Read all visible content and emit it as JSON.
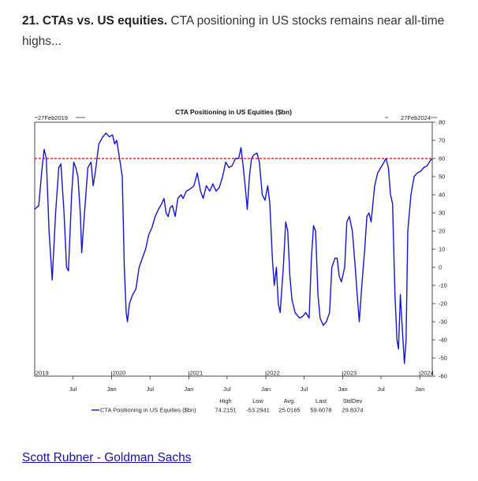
{
  "intro": {
    "bold": "21. CTAs vs. US equities.",
    "text": " CTA positioning in US stocks remains near all-time highs..."
  },
  "chart_data": {
    "type": "line",
    "title": "CTA Positioning in US Equities ($bn)",
    "date_start_label": "27Feb2019",
    "date_end_label": "27Feb2024",
    "ylim": [
      -60,
      80
    ],
    "yticks": [
      80,
      70,
      60,
      50,
      40,
      30,
      20,
      10,
      0,
      -10,
      -20,
      -30,
      -40,
      -50,
      -60
    ],
    "xlim": [
      "2019-01-01",
      "2024-02-29"
    ],
    "x_ticks_minor": [
      {
        "label": "Jul",
        "date": "2019-07-01"
      },
      {
        "label": "Jan",
        "date": "2020-01-01"
      },
      {
        "label": "Jul",
        "date": "2020-07-01"
      },
      {
        "label": "Jan",
        "date": "2021-01-01"
      },
      {
        "label": "Jul",
        "date": "2021-07-01"
      },
      {
        "label": "Jan",
        "date": "2022-01-01"
      },
      {
        "label": "Jul",
        "date": "2022-07-01"
      },
      {
        "label": "Jan",
        "date": "2023-01-01"
      },
      {
        "label": "Jul",
        "date": "2023-07-01"
      },
      {
        "label": "Jan",
        "date": "2024-01-01"
      }
    ],
    "x_ticks_years": [
      {
        "label": "2019",
        "date": "2019-01-01"
      },
      {
        "label": "2020",
        "date": "2020-01-01"
      },
      {
        "label": "2021",
        "date": "2021-01-01"
      },
      {
        "label": "2022",
        "date": "2022-01-01"
      },
      {
        "label": "2023",
        "date": "2023-01-01"
      },
      {
        "label": "2024",
        "date": "2024-01-01"
      }
    ],
    "reference_line": {
      "y": 60,
      "color": "#e00000",
      "style": "dashed"
    },
    "series": [
      {
        "name": "CTA Positioning in US Equities ($bn)",
        "color": "#1515d0",
        "points": [
          [
            "2019-01-01",
            32
          ],
          [
            "2019-01-20",
            34
          ],
          [
            "2019-02-05",
            55
          ],
          [
            "2019-02-15",
            65
          ],
          [
            "2019-02-25",
            60
          ],
          [
            "2019-03-10",
            20
          ],
          [
            "2019-03-25",
            -7
          ],
          [
            "2019-04-10",
            30
          ],
          [
            "2019-04-25",
            55
          ],
          [
            "2019-05-05",
            57
          ],
          [
            "2019-05-20",
            30
          ],
          [
            "2019-06-01",
            0
          ],
          [
            "2019-06-10",
            -2
          ],
          [
            "2019-06-25",
            40
          ],
          [
            "2019-07-05",
            58
          ],
          [
            "2019-07-15",
            55
          ],
          [
            "2019-07-25",
            50
          ],
          [
            "2019-08-05",
            30
          ],
          [
            "2019-08-12",
            8
          ],
          [
            "2019-08-25",
            30
          ],
          [
            "2019-09-10",
            55
          ],
          [
            "2019-09-25",
            58
          ],
          [
            "2019-10-05",
            45
          ],
          [
            "2019-10-15",
            52
          ],
          [
            "2019-11-01",
            68
          ],
          [
            "2019-11-20",
            72
          ],
          [
            "2019-12-05",
            74
          ],
          [
            "2019-12-20",
            72
          ],
          [
            "2020-01-05",
            73
          ],
          [
            "2020-01-15",
            68
          ],
          [
            "2020-01-25",
            70
          ],
          [
            "2020-02-05",
            62
          ],
          [
            "2020-02-20",
            50
          ],
          [
            "2020-03-01",
            0
          ],
          [
            "2020-03-10",
            -25
          ],
          [
            "2020-03-16",
            -30
          ],
          [
            "2020-03-25",
            -20
          ],
          [
            "2020-04-10",
            -15
          ],
          [
            "2020-04-25",
            -12
          ],
          [
            "2020-05-10",
            0
          ],
          [
            "2020-05-25",
            5
          ],
          [
            "2020-06-10",
            10
          ],
          [
            "2020-06-25",
            18
          ],
          [
            "2020-07-10",
            22
          ],
          [
            "2020-07-25",
            28
          ],
          [
            "2020-08-10",
            32
          ],
          [
            "2020-08-25",
            35
          ],
          [
            "2020-09-05",
            38
          ],
          [
            "2020-09-15",
            30
          ],
          [
            "2020-09-25",
            28
          ],
          [
            "2020-10-05",
            33
          ],
          [
            "2020-10-15",
            34
          ],
          [
            "2020-10-28",
            28
          ],
          [
            "2020-11-10",
            38
          ],
          [
            "2020-11-25",
            40
          ],
          [
            "2020-12-05",
            38
          ],
          [
            "2020-12-20",
            42
          ],
          [
            "2021-01-05",
            43
          ],
          [
            "2021-01-25",
            45
          ],
          [
            "2021-02-10",
            52
          ],
          [
            "2021-02-25",
            42
          ],
          [
            "2021-03-10",
            38
          ],
          [
            "2021-03-25",
            45
          ],
          [
            "2021-04-10",
            42
          ],
          [
            "2021-04-25",
            46
          ],
          [
            "2021-05-10",
            42
          ],
          [
            "2021-05-25",
            44
          ],
          [
            "2021-06-10",
            50
          ],
          [
            "2021-06-25",
            58
          ],
          [
            "2021-07-10",
            55
          ],
          [
            "2021-07-25",
            56
          ],
          [
            "2021-08-10",
            60
          ],
          [
            "2021-08-25",
            60
          ],
          [
            "2021-09-05",
            66
          ],
          [
            "2021-09-15",
            56
          ],
          [
            "2021-09-25",
            45
          ],
          [
            "2021-10-05",
            32
          ],
          [
            "2021-10-15",
            50
          ],
          [
            "2021-10-25",
            60
          ],
          [
            "2021-11-05",
            62
          ],
          [
            "2021-11-20",
            63
          ],
          [
            "2021-12-01",
            58
          ],
          [
            "2021-12-15",
            40
          ],
          [
            "2021-12-28",
            37
          ],
          [
            "2022-01-10",
            45
          ],
          [
            "2022-01-20",
            35
          ],
          [
            "2022-02-01",
            5
          ],
          [
            "2022-02-10",
            -10
          ],
          [
            "2022-02-20",
            0
          ],
          [
            "2022-03-01",
            -20
          ],
          [
            "2022-03-10",
            -25
          ],
          [
            "2022-03-25",
            0
          ],
          [
            "2022-04-05",
            25
          ],
          [
            "2022-04-15",
            20
          ],
          [
            "2022-04-25",
            -5
          ],
          [
            "2022-05-05",
            -18
          ],
          [
            "2022-05-20",
            -25
          ],
          [
            "2022-06-10",
            -28
          ],
          [
            "2022-06-25",
            -27
          ],
          [
            "2022-07-10",
            -25
          ],
          [
            "2022-07-25",
            -28
          ],
          [
            "2022-08-05",
            5
          ],
          [
            "2022-08-15",
            23
          ],
          [
            "2022-08-25",
            20
          ],
          [
            "2022-09-05",
            -15
          ],
          [
            "2022-09-15",
            -28
          ],
          [
            "2022-09-30",
            -32
          ],
          [
            "2022-10-15",
            -30
          ],
          [
            "2022-10-30",
            -25
          ],
          [
            "2022-11-10",
            0
          ],
          [
            "2022-11-25",
            5
          ],
          [
            "2022-12-05",
            5
          ],
          [
            "2022-12-15",
            -5
          ],
          [
            "2022-12-25",
            -8
          ],
          [
            "2023-01-10",
            0
          ],
          [
            "2023-01-20",
            25
          ],
          [
            "2023-02-01",
            28
          ],
          [
            "2023-02-15",
            20
          ],
          [
            "2023-03-01",
            0
          ],
          [
            "2023-03-10",
            -15
          ],
          [
            "2023-03-20",
            -30
          ],
          [
            "2023-04-01",
            -10
          ],
          [
            "2023-04-15",
            10
          ],
          [
            "2023-04-25",
            28
          ],
          [
            "2023-05-05",
            30
          ],
          [
            "2023-05-15",
            25
          ],
          [
            "2023-06-01",
            45
          ],
          [
            "2023-06-15",
            52
          ],
          [
            "2023-06-30",
            55
          ],
          [
            "2023-07-15",
            58
          ],
          [
            "2023-07-25",
            60
          ],
          [
            "2023-08-05",
            55
          ],
          [
            "2023-08-15",
            40
          ],
          [
            "2023-08-25",
            35
          ],
          [
            "2023-09-05",
            -15
          ],
          [
            "2023-09-15",
            -40
          ],
          [
            "2023-09-22",
            -45
          ],
          [
            "2023-10-01",
            -15
          ],
          [
            "2023-10-08",
            -30
          ],
          [
            "2023-10-20",
            -53
          ],
          [
            "2023-10-28",
            -40
          ],
          [
            "2023-11-05",
            20
          ],
          [
            "2023-11-20",
            40
          ],
          [
            "2023-12-05",
            50
          ],
          [
            "2023-12-20",
            52
          ],
          [
            "2024-01-05",
            53
          ],
          [
            "2024-01-20",
            55
          ],
          [
            "2024-02-05",
            56
          ],
          [
            "2024-02-20",
            59
          ],
          [
            "2024-02-27",
            59.6
          ]
        ]
      }
    ],
    "stats": {
      "headers": [
        "High",
        "Low",
        "Avg.",
        "Last",
        "StdDev"
      ],
      "values": [
        "74.2151",
        "-53.2941",
        "25.0165",
        "59.6078",
        "29.8374"
      ]
    }
  },
  "footer": {
    "link": "Scott Rubner - Goldman Sachs"
  }
}
